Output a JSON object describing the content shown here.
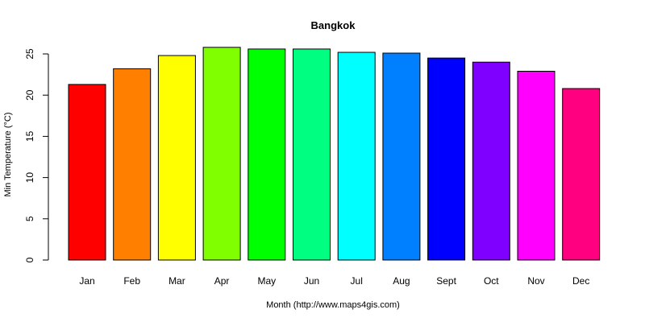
{
  "chart_data": {
    "type": "bar",
    "title": "Bangkok",
    "xlabel": "Month (http://www.maps4gis.com)",
    "ylabel": "Min Temperature (°C)",
    "ylim": [
      0,
      25
    ],
    "yticks": [
      0,
      5,
      10,
      15,
      20,
      25
    ],
    "grid": false,
    "categories": [
      "Jan",
      "Feb",
      "Mar",
      "Apr",
      "May",
      "Jun",
      "Jul",
      "Aug",
      "Sept",
      "Oct",
      "Nov",
      "Dec"
    ],
    "values": [
      21.3,
      23.2,
      24.8,
      25.8,
      25.6,
      25.6,
      25.2,
      25.1,
      24.5,
      24.0,
      22.9,
      20.8
    ],
    "colors": [
      "#FF0000",
      "#FF8000",
      "#FFFF00",
      "#80FF00",
      "#00FF00",
      "#00FF80",
      "#00FFFF",
      "#0080FF",
      "#0000FF",
      "#8000FF",
      "#FF00FF",
      "#FF0080"
    ]
  }
}
